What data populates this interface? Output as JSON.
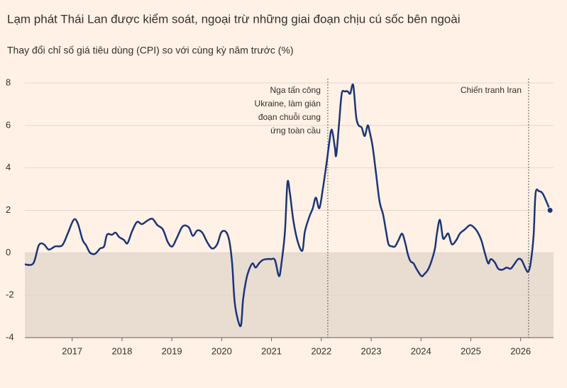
{
  "chart_data": {
    "type": "line",
    "title": "Lạm phát Thái Lan được kiểm soát, ngoại trừ những giai đoạn chịu cú sốc bên ngoài",
    "subtitle": "Thay đổi chỉ số giá tiêu dùng (CPI) so với cùng kỳ năm trước (%)",
    "x": [
      2016.05,
      2016.22,
      2016.33,
      2016.43,
      2016.53,
      2016.66,
      2016.8,
      2016.91,
      2017.03,
      2017.11,
      2017.21,
      2017.28,
      2017.36,
      2017.46,
      2017.56,
      2017.64,
      2017.7,
      2017.8,
      2017.87,
      2017.94,
      2018.04,
      2018.11,
      2018.2,
      2018.3,
      2018.4,
      2018.5,
      2018.61,
      2018.71,
      2018.82,
      2018.92,
      2019.01,
      2019.11,
      2019.22,
      2019.34,
      2019.42,
      2019.51,
      2019.61,
      2019.71,
      2019.81,
      2019.91,
      2019.99,
      2020.08,
      2020.15,
      2020.21,
      2020.26,
      2020.33,
      2020.39,
      2020.43,
      2020.49,
      2020.55,
      2020.62,
      2020.68,
      2020.75,
      2020.82,
      2020.9,
      2020.99,
      2021.07,
      2021.15,
      2021.2,
      2021.27,
      2021.32,
      2021.37,
      2021.44,
      2021.53,
      2021.62,
      2021.67,
      2021.76,
      2021.83,
      2021.89,
      2021.96,
      2022.03,
      2022.11,
      2022.16,
      2022.21,
      2022.27,
      2022.3,
      2022.36,
      2022.41,
      2022.47,
      2022.53,
      2022.58,
      2022.64,
      2022.7,
      2022.75,
      2022.81,
      2022.87,
      2022.93,
      2022.97,
      2023.03,
      2023.1,
      2023.17,
      2023.24,
      2023.3,
      2023.35,
      2023.42,
      2023.48,
      2023.55,
      2023.62,
      2023.68,
      2023.74,
      2023.79,
      2023.85,
      2023.92,
      2024.01,
      2024.07,
      2024.14,
      2024.21,
      2024.28,
      2024.32,
      2024.38,
      2024.44,
      2024.49,
      2024.55,
      2024.62,
      2024.71,
      2024.78,
      2024.88,
      2024.98,
      2025.06,
      2025.13,
      2025.21,
      2025.28,
      2025.35,
      2025.4,
      2025.48,
      2025.55,
      2025.63,
      2025.72,
      2025.8,
      2025.87,
      2025.95,
      2026.02,
      2026.09,
      2026.15,
      2026.2,
      2026.26,
      2026.3,
      2026.37,
      2026.44,
      2026.52,
      2026.59
    ],
    "series": [
      {
        "name": "CPI",
        "color": "#1a3578",
        "values": [
          -0.55,
          -0.5,
          0.35,
          0.4,
          0.15,
          0.3,
          0.35,
          0.9,
          1.55,
          1.4,
          0.6,
          0.35,
          0.0,
          -0.05,
          0.2,
          0.3,
          0.85,
          0.85,
          0.95,
          0.75,
          0.6,
          0.45,
          1.0,
          1.45,
          1.35,
          1.5,
          1.6,
          1.3,
          1.1,
          0.5,
          0.3,
          0.75,
          1.25,
          1.2,
          0.8,
          1.05,
          0.95,
          0.5,
          0.2,
          0.4,
          0.95,
          1.0,
          0.6,
          -0.5,
          -2.3,
          -3.2,
          -3.4,
          -2.2,
          -1.3,
          -0.8,
          -0.5,
          -0.7,
          -0.5,
          -0.35,
          -0.3,
          -0.3,
          -0.35,
          -1.1,
          -0.5,
          1.0,
          3.3,
          2.8,
          1.5,
          0.5,
          0.1,
          1.0,
          1.7,
          2.1,
          2.6,
          2.1,
          3.0,
          4.3,
          5.2,
          5.8,
          5.0,
          4.6,
          6.2,
          7.5,
          7.6,
          7.6,
          7.5,
          7.9,
          6.4,
          6.0,
          5.9,
          5.5,
          6.0,
          5.7,
          5.0,
          3.7,
          2.4,
          1.8,
          1.0,
          0.4,
          0.3,
          0.3,
          0.6,
          0.9,
          0.5,
          -0.1,
          -0.4,
          -0.5,
          -0.8,
          -1.1,
          -1.0,
          -0.8,
          -0.4,
          0.2,
          0.9,
          1.55,
          0.7,
          0.75,
          0.9,
          0.4,
          0.6,
          0.9,
          1.1,
          1.3,
          1.2,
          1.0,
          0.6,
          0.0,
          -0.5,
          -0.3,
          -0.45,
          -0.75,
          -0.8,
          -0.7,
          -0.75,
          -0.55,
          -0.3,
          -0.35,
          -0.7,
          -0.9,
          -0.5,
          0.8,
          2.8,
          2.9,
          2.8,
          2.4,
          2.0
        ]
      }
    ],
    "xlim": [
      2016.05,
      2026.66
    ],
    "xticks": [
      2017,
      2018,
      2019,
      2020,
      2021,
      2022,
      2023,
      2024,
      2025,
      2026
    ],
    "ylim": [
      -4,
      8.2
    ],
    "yticks": [
      -4,
      -2,
      0,
      2,
      4,
      6,
      8
    ],
    "grid": true,
    "shade_below_zero": true,
    "annotations": [
      {
        "lines": [
          "Nga tấn công",
          "Ukraine, làm gián",
          "đoạn chuỗi cung",
          "ứng toàn cầu"
        ],
        "x": 2022.13
      },
      {
        "lines": [
          "Chiến tranh Iran"
        ],
        "x": 2026.16
      }
    ]
  }
}
